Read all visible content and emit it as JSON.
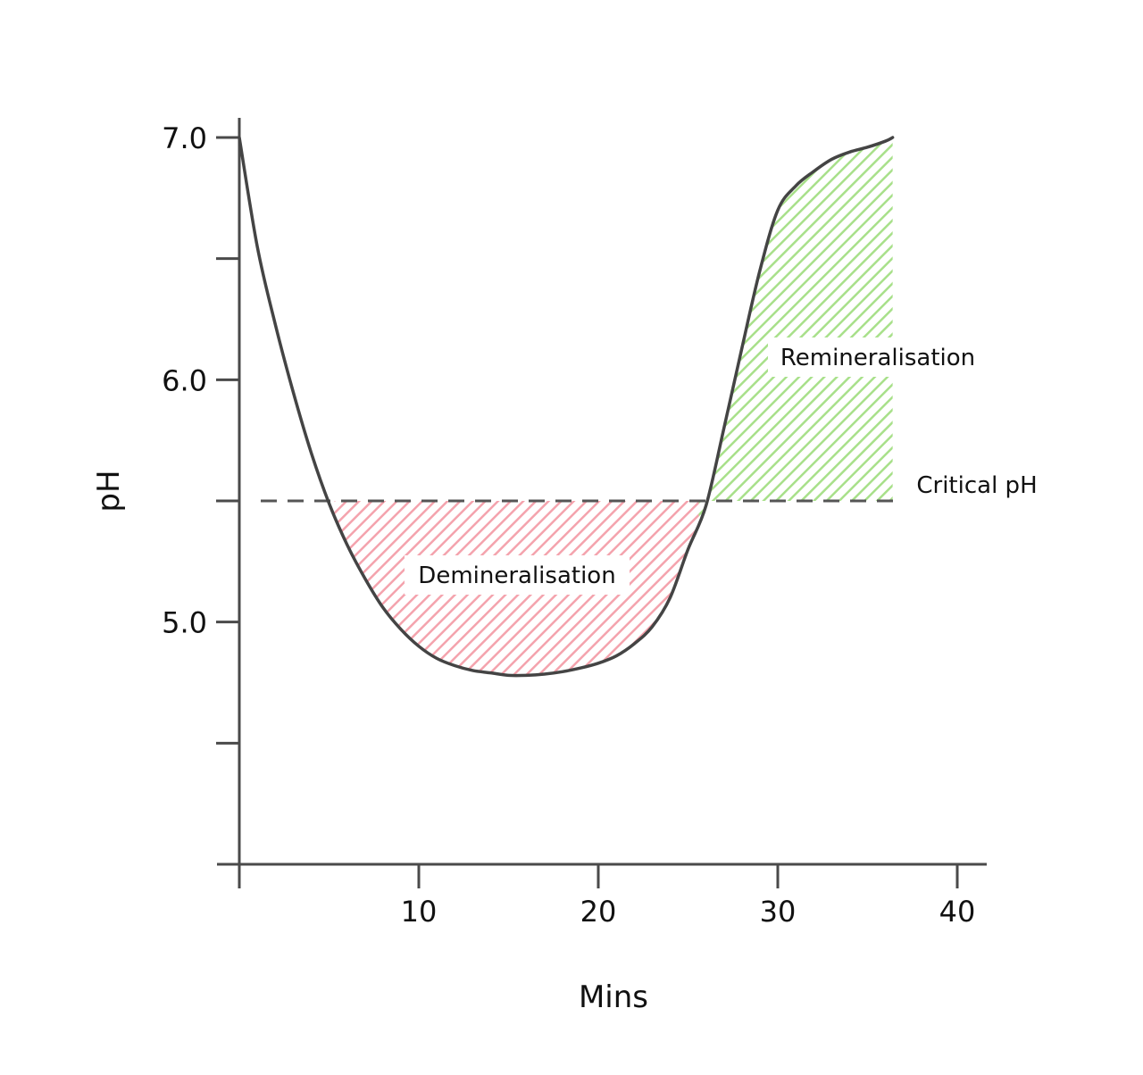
{
  "chart_data": {
    "type": "line",
    "title": "",
    "xlabel": "Mins",
    "ylabel": "pH",
    "xlim": [
      0,
      42
    ],
    "ylim": [
      4.0,
      7.0
    ],
    "x_ticks": [
      10,
      20,
      30,
      40
    ],
    "x_tick_labels": [
      "10",
      "20",
      "30",
      "40"
    ],
    "y_major_ticks": [
      5.0,
      6.0,
      7.0
    ],
    "y_tick_labels": [
      "5.0",
      "6.0",
      "7.0"
    ],
    "y_minor_ticks": [
      4.5,
      5.5,
      6.5
    ],
    "grid": false,
    "series": [
      {
        "x": [
          0,
          1,
          2,
          3,
          4,
          5,
          6,
          7,
          8,
          9,
          10,
          11,
          12,
          13,
          14,
          15,
          16,
          17,
          18,
          19,
          20,
          21,
          22,
          23,
          24,
          25,
          26,
          27,
          28,
          29,
          30,
          31,
          32,
          33,
          34,
          35,
          36,
          36.4
        ],
        "values": [
          7.0,
          6.55,
          6.23,
          5.95,
          5.7,
          5.49,
          5.32,
          5.18,
          5.06,
          4.97,
          4.9,
          4.85,
          4.82,
          4.8,
          4.79,
          4.78,
          4.78,
          4.785,
          4.795,
          4.81,
          4.83,
          4.86,
          4.91,
          4.98,
          5.1,
          5.3,
          5.48,
          5.8,
          6.13,
          6.45,
          6.7,
          6.8,
          6.86,
          6.91,
          6.94,
          6.96,
          6.985,
          7.0
        ]
      }
    ],
    "critical_line": {
      "y": 5.5,
      "label": "Critical pH"
    },
    "regions": [
      {
        "name": "Demineralisation",
        "x_range": [
          5.3,
          25.6
        ],
        "color": "#f4a3ad"
      },
      {
        "name": "Remineralisation",
        "x_range": [
          25.6,
          36.4
        ],
        "color": "#a8e08a"
      }
    ],
    "colors": {
      "axis": "#4a4a4a",
      "line": "#444444",
      "critical_line": "#555555"
    }
  }
}
